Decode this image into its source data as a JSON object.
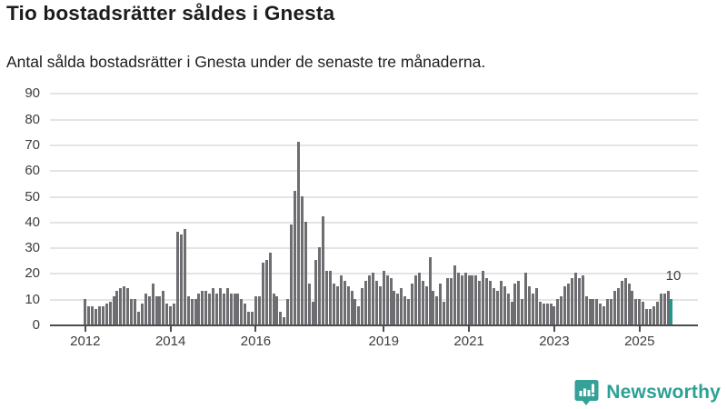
{
  "header": {
    "title": "Tio bostadsrätter såldes i Gnesta",
    "subtitle": "Antal sålda bostadsrätter i Gnesta under de senaste tre månaderna."
  },
  "chart_data": {
    "type": "bar",
    "title": "Tio bostadsrätter såldes i Gnesta",
    "subtitle": "Antal sålda bostadsrätter i Gnesta under de senaste tre månaderna.",
    "frequency": "monthly",
    "x_start": "2012-01",
    "x_end": "2025-10",
    "values": [
      10,
      7,
      7,
      6,
      7,
      7,
      8,
      9,
      11,
      13,
      14,
      15,
      14,
      10,
      10,
      5,
      8,
      12,
      11,
      16,
      11,
      11,
      13,
      8,
      7,
      8,
      36,
      35,
      37,
      11,
      10,
      10,
      12,
      13,
      13,
      12,
      14,
      12,
      14,
      12,
      14,
      12,
      12,
      12,
      10,
      8,
      5,
      5,
      11,
      11,
      24,
      25,
      28,
      12,
      11,
      5,
      3,
      10,
      39,
      52,
      71,
      50,
      40,
      16,
      9,
      25,
      30,
      42,
      21,
      21,
      16,
      15,
      19,
      17,
      15,
      13,
      10,
      7,
      14,
      17,
      19,
      20,
      17,
      15,
      21,
      19,
      18,
      13,
      12,
      14,
      11,
      10,
      16,
      19,
      20,
      17,
      15,
      26,
      13,
      11,
      16,
      9,
      18,
      18,
      23,
      20,
      19,
      20,
      19,
      19,
      19,
      17,
      21,
      18,
      17,
      14,
      13,
      17,
      15,
      12,
      9,
      16,
      17,
      10,
      20,
      15,
      12,
      14,
      9,
      8,
      8,
      8,
      7,
      10,
      11,
      15,
      16,
      18,
      20,
      18,
      19,
      11,
      10,
      10,
      10,
      8,
      7,
      10,
      10,
      13,
      14,
      17,
      18,
      16,
      13,
      10,
      10,
      9,
      6,
      6,
      7,
      9,
      12,
      12,
      13,
      10
    ],
    "highlight_last": {
      "index": 165,
      "label": "10",
      "color": "#1f998c"
    },
    "bar_color": "#6e6d71",
    "y_ticks": [
      0,
      10,
      20,
      30,
      40,
      50,
      60,
      70,
      80,
      90
    ],
    "ylim": [
      0,
      91
    ],
    "grid": true,
    "legend": "none",
    "x_tick_labels": [
      "2012",
      "2014",
      "2016",
      "2019",
      "2021",
      "2023",
      "2025"
    ],
    "x_tick_month_indices": [
      0,
      24,
      48,
      84,
      108,
      132,
      156
    ]
  },
  "annotation": {
    "latest_value": "10"
  },
  "footer": {
    "brand": "Newsworthy",
    "brand_color": "#2da094"
  },
  "icons": {
    "logo": "newsworthy-speech-bubble-bar-chart-icon"
  }
}
